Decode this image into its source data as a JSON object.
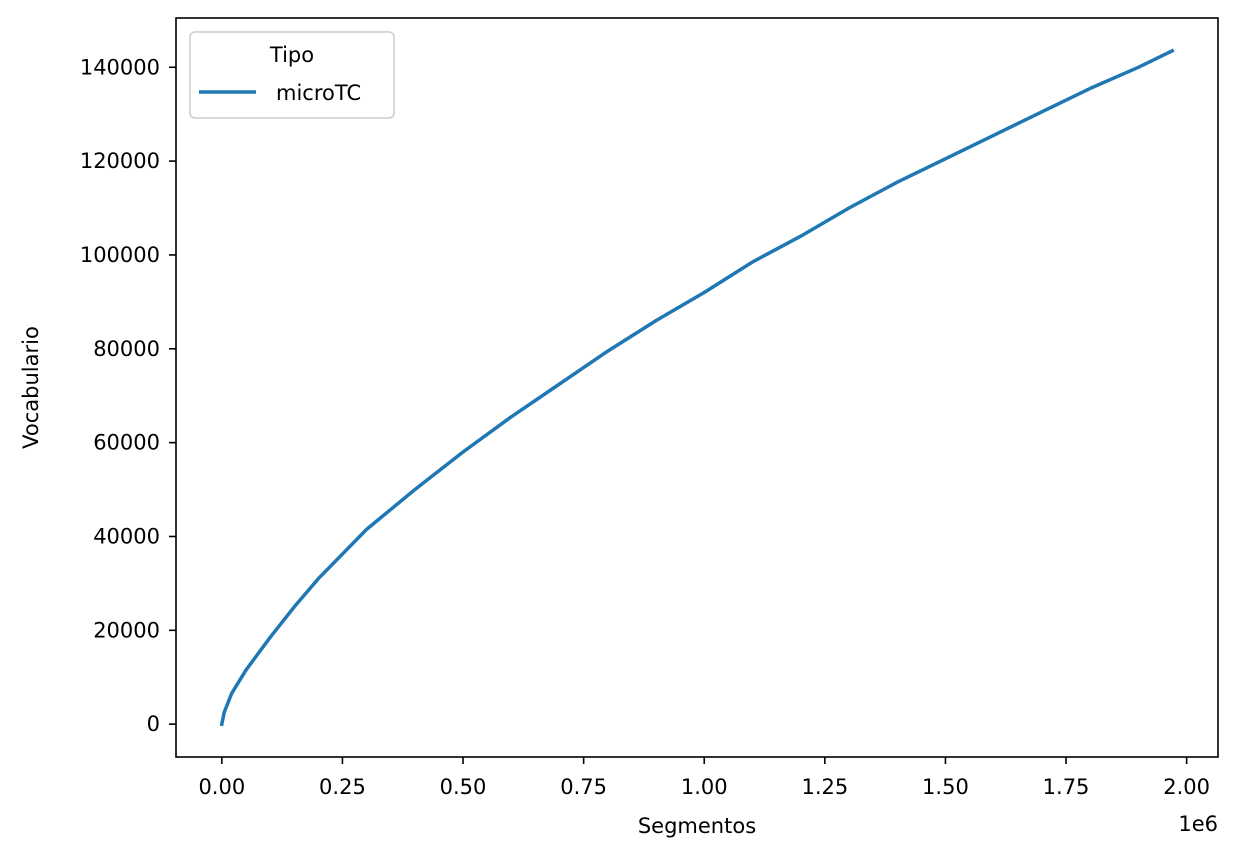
{
  "chart_data": {
    "type": "line",
    "title": "",
    "xlabel": "Segmentos",
    "ylabel": "Vocabulario",
    "x_offset_label": "1e6",
    "xlim": [
      -95000,
      2065000
    ],
    "ylim": [
      -7000,
      150500
    ],
    "xticks": [
      0,
      250000,
      500000,
      750000,
      1000000,
      1250000,
      1500000,
      1750000,
      2000000
    ],
    "xtick_labels": [
      "0.00",
      "0.25",
      "0.50",
      "0.75",
      "1.00",
      "1.25",
      "1.50",
      "1.75",
      "2.00"
    ],
    "yticks": [
      0,
      20000,
      40000,
      60000,
      80000,
      100000,
      120000,
      140000
    ],
    "ytick_labels": [
      "0",
      "20000",
      "40000",
      "60000",
      "80000",
      "100000",
      "120000",
      "140000"
    ],
    "grid": false,
    "legend": {
      "title": "Tipo",
      "placement": "top-left"
    },
    "series": [
      {
        "name": "microTC",
        "color": "#1f77b4",
        "x": [
          0,
          5000,
          20000,
          50000,
          100000,
          150000,
          200000,
          300000,
          400000,
          500000,
          600000,
          700000,
          800000,
          900000,
          1000000,
          1100000,
          1200000,
          1300000,
          1400000,
          1500000,
          1600000,
          1700000,
          1800000,
          1900000,
          1970000
        ],
        "y": [
          0,
          2500,
          6500,
          11500,
          18500,
          25000,
          31000,
          41500,
          50000,
          58000,
          65500,
          72500,
          79500,
          86000,
          92000,
          98500,
          104000,
          110000,
          115500,
          120500,
          125500,
          130500,
          135500,
          140000,
          143500
        ]
      }
    ]
  }
}
